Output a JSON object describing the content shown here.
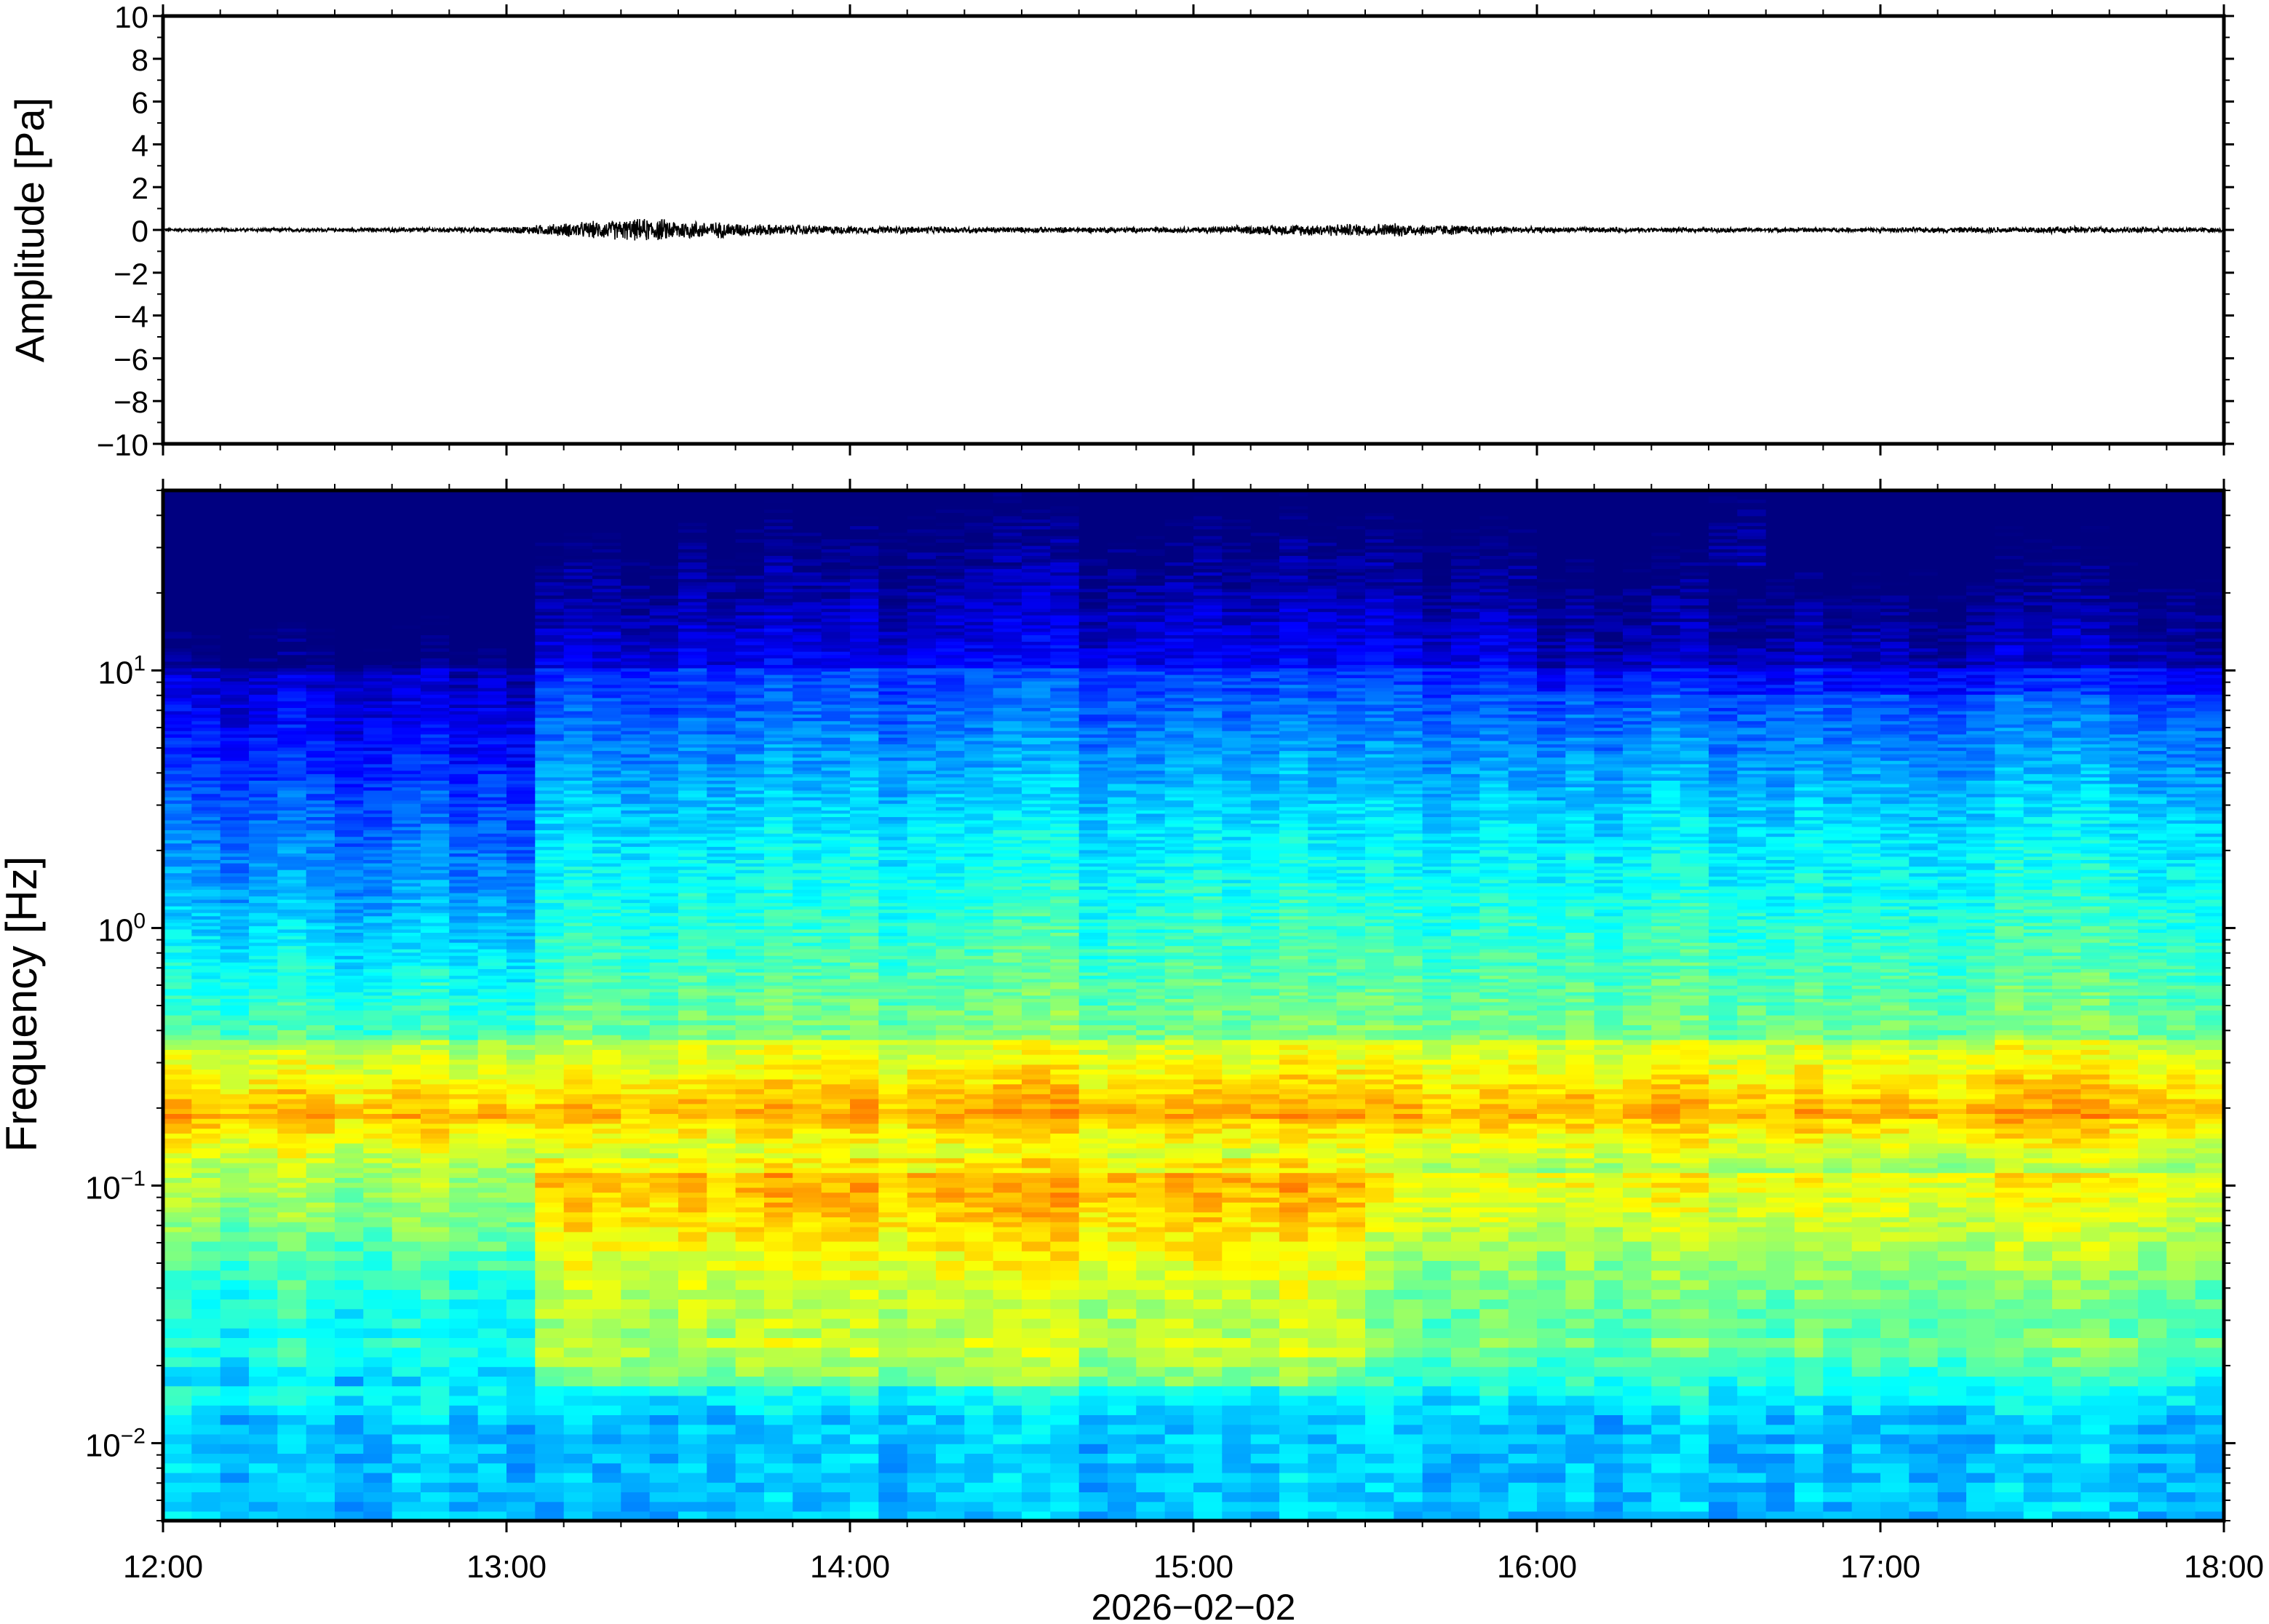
{
  "chart_data": [
    {
      "type": "line",
      "panel": "waveform",
      "ylabel": "Amplitude [Pa]",
      "ylim": [
        -10,
        10
      ],
      "yticks": [
        10,
        8,
        6,
        4,
        2,
        0,
        -2,
        -4,
        -6,
        -8,
        -10
      ],
      "ytick_labels": [
        "10",
        "8",
        "6",
        "4",
        "2",
        "0",
        "−2",
        "−4",
        "−6",
        "−8",
        "−10"
      ],
      "series": [
        {
          "x": [
            "12:00",
            "12:30",
            "13:00",
            "13:15",
            "13:25",
            "13:35",
            "13:45",
            "14:00",
            "14:30",
            "15:00",
            "15:20",
            "15:35",
            "16:00",
            "16:30",
            "17:00",
            "17:30",
            "18:00"
          ],
          "envelope": [
            0.1,
            0.1,
            0.15,
            0.45,
            0.6,
            0.45,
            0.3,
            0.2,
            0.15,
            0.15,
            0.3,
            0.35,
            0.15,
            0.12,
            0.12,
            0.18,
            0.12
          ]
        }
      ]
    },
    {
      "type": "heatmap",
      "panel": "spectrogram",
      "ylabel": "Frequency [Hz]",
      "yscale": "log",
      "ylim": [
        0.005,
        50
      ],
      "yticks": [
        0.01,
        0.1,
        1,
        10
      ],
      "ytick_labels": [
        {
          "base": "10",
          "exp": "−2"
        },
        {
          "base": "10",
          "exp": "−1"
        },
        {
          "base": "10",
          "exp": "0"
        },
        {
          "base": "10",
          "exp": "1"
        }
      ],
      "colormap": "jet",
      "xlabel": "2026−02−02",
      "xlim": [
        "12:00",
        "18:00"
      ],
      "xticks": [
        "12:00",
        "13:00",
        "14:00",
        "15:00",
        "16:00",
        "17:00",
        "18:00"
      ]
    }
  ]
}
